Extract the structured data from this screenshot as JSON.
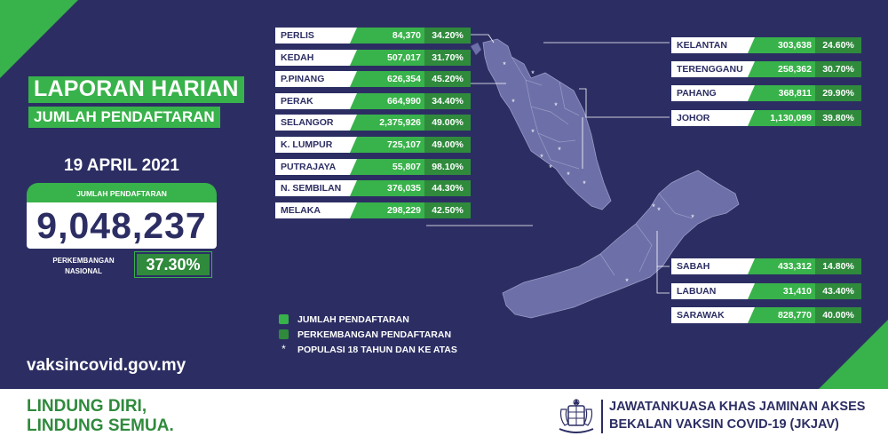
{
  "title": "LAPORAN HARIAN",
  "subtitle": "JUMLAH PENDAFTARAN",
  "date": "19 APRIL 2021",
  "total": {
    "label": "JUMLAH PENDAFTARAN",
    "value": "9,048,237",
    "national_label_line1": "PERKEMBANGAN",
    "national_label_line2": "NASIONAL",
    "national_value": "37.30%"
  },
  "website": "vaksincovid.gov.my",
  "states_left": [
    {
      "name": "PERLIS",
      "registered": "84,370",
      "percent": "34.20%"
    },
    {
      "name": "KEDAH",
      "registered": "507,017",
      "percent": "31.70%"
    },
    {
      "name": "P.PINANG",
      "registered": "626,354",
      "percent": "45.20%"
    },
    {
      "name": "PERAK",
      "registered": "664,990",
      "percent": "34.40%"
    },
    {
      "name": "SELANGOR",
      "registered": "2,375,926",
      "percent": "49.00%"
    },
    {
      "name": "K. LUMPUR",
      "registered": "725,107",
      "percent": "49.00%"
    },
    {
      "name": "PUTRAJAYA",
      "registered": "55,807",
      "percent": "98.10%"
    },
    {
      "name": "N. SEMBILAN",
      "registered": "376,035",
      "percent": "44.30%"
    },
    {
      "name": "MELAKA",
      "registered": "298,229",
      "percent": "42.50%"
    }
  ],
  "states_right_top": [
    {
      "name": "KELANTAN",
      "registered": "303,638",
      "percent": "24.60%"
    },
    {
      "name": "TERENGGANU",
      "registered": "258,362",
      "percent": "30.70%"
    },
    {
      "name": "PAHANG",
      "registered": "368,811",
      "percent": "29.90%"
    },
    {
      "name": "JOHOR",
      "registered": "1,130,099",
      "percent": "39.80%"
    }
  ],
  "states_right_bottom": [
    {
      "name": "SABAH",
      "registered": "433,312",
      "percent": "14.80%"
    },
    {
      "name": "LABUAN",
      "registered": "31,410",
      "percent": "43.40%"
    },
    {
      "name": "SARAWAK",
      "registered": "828,770",
      "percent": "40.00%"
    }
  ],
  "legend": {
    "registrations": "JUMLAH PENDAFTARAN",
    "progress": "PERKEMBANGAN PENDAFTARAN",
    "population": "POPULASI 18 TAHUN DAN KE ATAS"
  },
  "footer": {
    "slogan_line1": "LINDUNG DIRI,",
    "slogan_line2": "LINDUNG SEMUA.",
    "org_line1": "JAWATANKUASA KHAS JAMINAN AKSES",
    "org_line2": "BEKALAN VAKSIN COVID-19 (JKJAV)"
  },
  "colors": {
    "background": "#2c2e63",
    "green": "#38b24a",
    "dark_green": "#2f8a3c",
    "map": "#6d6fa8"
  },
  "icons": {
    "legend_star": "*"
  }
}
